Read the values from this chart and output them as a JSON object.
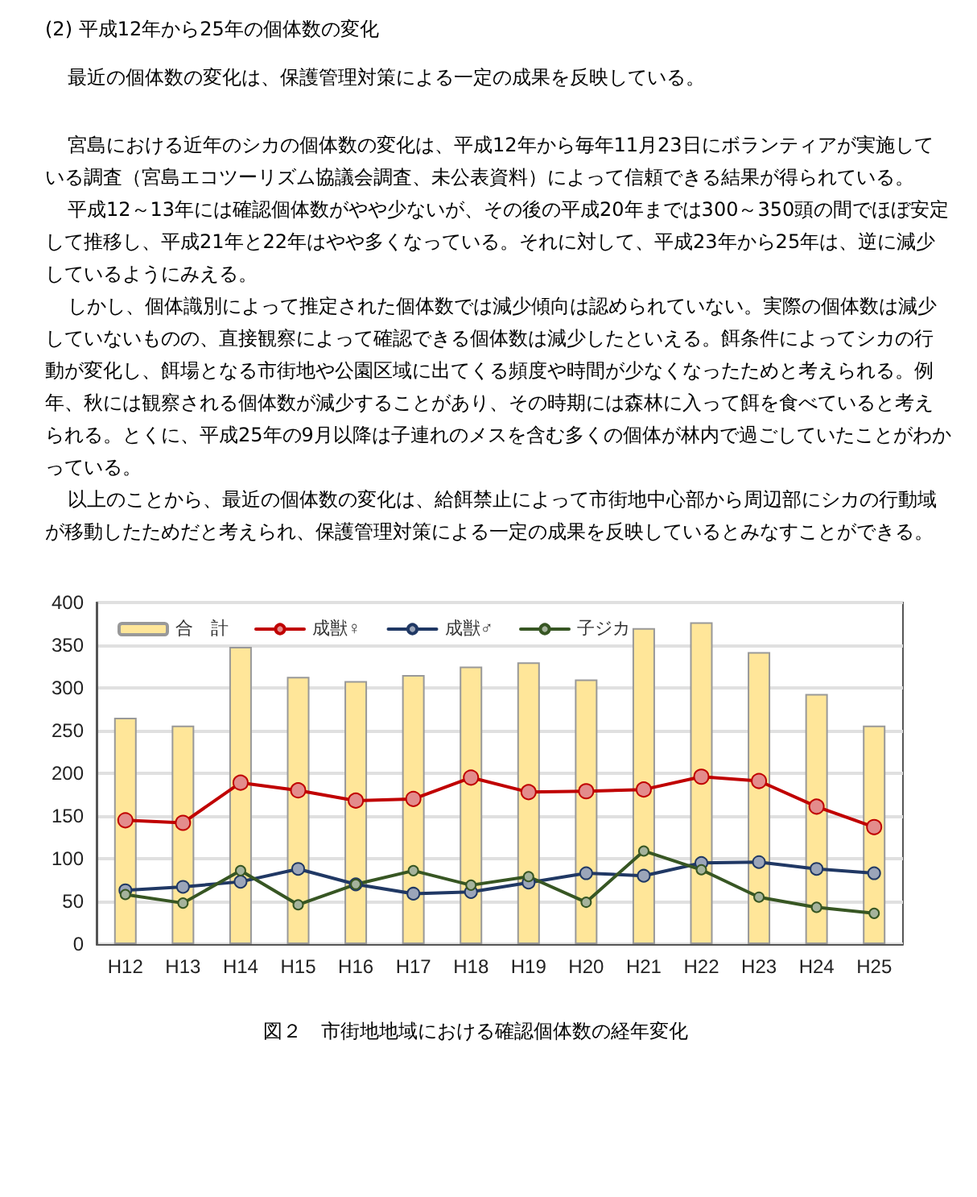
{
  "chart_data": {
    "type": "bar",
    "title": "(2) 平成12年から25年の個体数の変化",
    "subtitle": "最近の個体数の変化は、保護管理対策による一定の成果を反映している。",
    "annotations": [
      "宮島における近年のシカの個体数の変化は、平成12年から毎年11月23日にボランティアが実施している調査（宮島エコツーリズム協議会調査、未公表資料）によって信頼できる結果が得られている。",
      "平成12～13年には確認個体数がやや少ないが、その後の平成20年までは300～350頭の間でほぼ安定して推移し、平成21年と22年はやや多くなっている。それに対して、平成23年から25年は、逆に減少しているようにみえる。",
      "しかし、個体識別によって推定された個体数では減少傾向は認められていない。実際の個体数は減少していないものの、直接観察によって確認できる個体数は減少したといえる。餌条件によってシカの行動が変化し、餌場となる市街地や公園区域に出てくる頻度や時間が少なくなったためと考えられる。例年、秋には観察される個体数が減少することがあり、その時期には森林に入って餌を食べていると考えられる。とくに、平成25年の9月以降は子連れのメスを含む多くの個体が林内で過ごしていたことがわかっている。",
      "以上のことから、最近の個体数の変化は、給餌禁止によって市街地中心部から周辺部にシカの行動域が移動したためだと考えられ、保護管理対策による一定の成果を反映しているとみなすことができる。",
      "図２　市街地地域における確認個体数の経年変化"
    ],
    "categories": [
      "H12",
      "H13",
      "H14",
      "H15",
      "H16",
      "H17",
      "H18",
      "H19",
      "H20",
      "H21",
      "H22",
      "H23",
      "H24",
      "H25"
    ],
    "series": [
      {
        "name": "合　計",
        "color": "#ffe699",
        "values": [
          265,
          256,
          348,
          313,
          308,
          315,
          325,
          330,
          310,
          370,
          377,
          342,
          293,
          256
        ]
      },
      {
        "name": "成獣♀",
        "type": "line",
        "color": "#c00000",
        "values": [
          145,
          142,
          189,
          180,
          168,
          170,
          195,
          178,
          179,
          181,
          196,
          191,
          161,
          137
        ]
      },
      {
        "name": "成獣♂",
        "type": "line",
        "color": "#203864",
        "values": [
          63,
          67,
          73,
          88,
          70,
          59,
          61,
          72,
          83,
          80,
          95,
          96,
          88,
          83
        ]
      },
      {
        "name": "子ジカ",
        "type": "line",
        "color": "#375623",
        "values": [
          58,
          48,
          86,
          46,
          70,
          86,
          69,
          79,
          49,
          109,
          87,
          55,
          43,
          36
        ]
      }
    ],
    "ylim": [
      0,
      400
    ],
    "yticks": [
      0,
      50,
      100,
      150,
      200,
      250,
      300,
      350,
      400
    ],
    "grid": "y",
    "legend": "top left",
    "marker": "circle",
    "line_style": "solid"
  }
}
